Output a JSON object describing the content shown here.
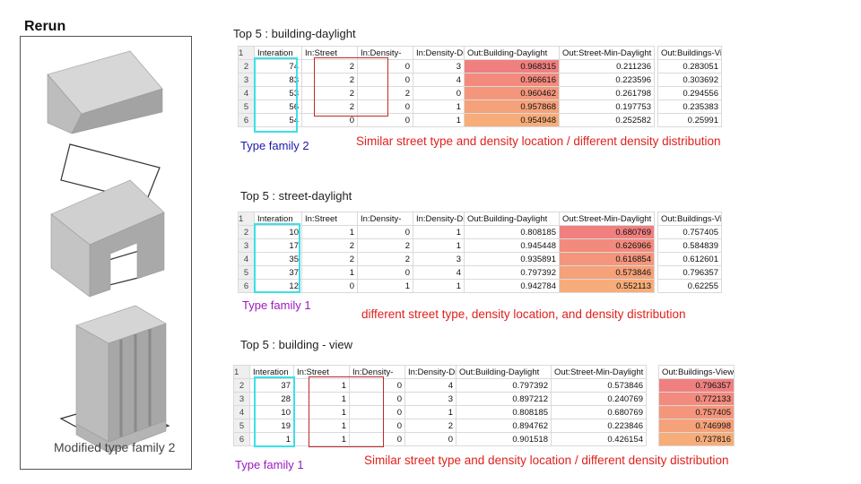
{
  "left_panel": {
    "title": "Rerun",
    "caption": "Modified type family 2"
  },
  "sections": [
    {
      "title": "Top 5 : building-daylight",
      "type_label": "Type family 2",
      "type_color": "#1a1aa8",
      "note": "Similar street type and density location / different density distribution",
      "highlight_column": 4,
      "heat_colors": [
        "#f08080",
        "#f28a7e",
        "#f4967c",
        "#f5a17a",
        "#f7ad79"
      ],
      "headers": [
        "Interation",
        "In:Street",
        "In:Density-",
        "In:Density-Distribut",
        "Out:Building-Daylight",
        "Out:Street-Min-Daylight",
        "Out:Buildings-Views"
      ],
      "rows": [
        [
          "74",
          "2",
          "0",
          "3",
          "0.968315",
          "0.211236",
          "0.283051"
        ],
        [
          "83",
          "2",
          "0",
          "4",
          "0.966616",
          "0.223596",
          "0.303692"
        ],
        [
          "53",
          "2",
          "2",
          "0",
          "0.960462",
          "0.261798",
          "0.294556"
        ],
        [
          "56",
          "2",
          "0",
          "1",
          "0.957868",
          "0.197753",
          "0.235383"
        ],
        [
          "54",
          "0",
          "0",
          "1",
          "0.954948",
          "0.252582",
          "0.25991"
        ]
      ]
    },
    {
      "title": "Top 5 : street-daylight",
      "type_label": "Type family 1",
      "type_color": "#9a1ac0",
      "note": "different street type, density location, and density distribution",
      "highlight_column": 5,
      "heat_colors": [
        "#f08080",
        "#f28a7e",
        "#f4967c",
        "#f5a17a",
        "#f7ad79"
      ],
      "headers": [
        "Interation",
        "In:Street",
        "In:Density-",
        "In:Density-Distribut",
        "Out:Building-Daylight",
        "Out:Street-Min-Daylight",
        "Out:Buildings-Views"
      ],
      "rows": [
        [
          "10",
          "1",
          "0",
          "1",
          "0.808185",
          "0.680769",
          "0.757405"
        ],
        [
          "17",
          "2",
          "2",
          "1",
          "0.945448",
          "0.626966",
          "0.584839"
        ],
        [
          "35",
          "2",
          "2",
          "3",
          "0.935891",
          "0.616854",
          "0.612601"
        ],
        [
          "37",
          "1",
          "0",
          "4",
          "0.797392",
          "0.573846",
          "0.796357"
        ],
        [
          "12",
          "0",
          "1",
          "1",
          "0.942784",
          "0.552113",
          "0.62255"
        ]
      ]
    },
    {
      "title": "Top 5 : building - view",
      "type_label": "Type family 1",
      "type_color": "#9a1ac0",
      "note": "Similar street type and density location / different density distribution",
      "highlight_column": 6,
      "heat_colors": [
        "#f08080",
        "#f28a7e",
        "#f4967c",
        "#f5a17a",
        "#f7ad79"
      ],
      "headers": [
        "Interation",
        "In:Street",
        "In:Density-",
        "In:Density-Distribut",
        "Out:Building-Daylight",
        "Out:Street-Min-Daylight",
        "Out:Buildings-Views"
      ],
      "rows": [
        [
          "37",
          "1",
          "0",
          "4",
          "0.797392",
          "0.573846",
          "0.796357"
        ],
        [
          "28",
          "1",
          "0",
          "3",
          "0.897212",
          "0.240769",
          "0.772133"
        ],
        [
          "10",
          "1",
          "0",
          "1",
          "0.808185",
          "0.680769",
          "0.757405"
        ],
        [
          "19",
          "1",
          "0",
          "2",
          "0.894762",
          "0.223846",
          "0.746998"
        ],
        [
          "1",
          "1",
          "0",
          "0",
          "0.901518",
          "0.426154",
          "0.737816"
        ]
      ]
    }
  ]
}
